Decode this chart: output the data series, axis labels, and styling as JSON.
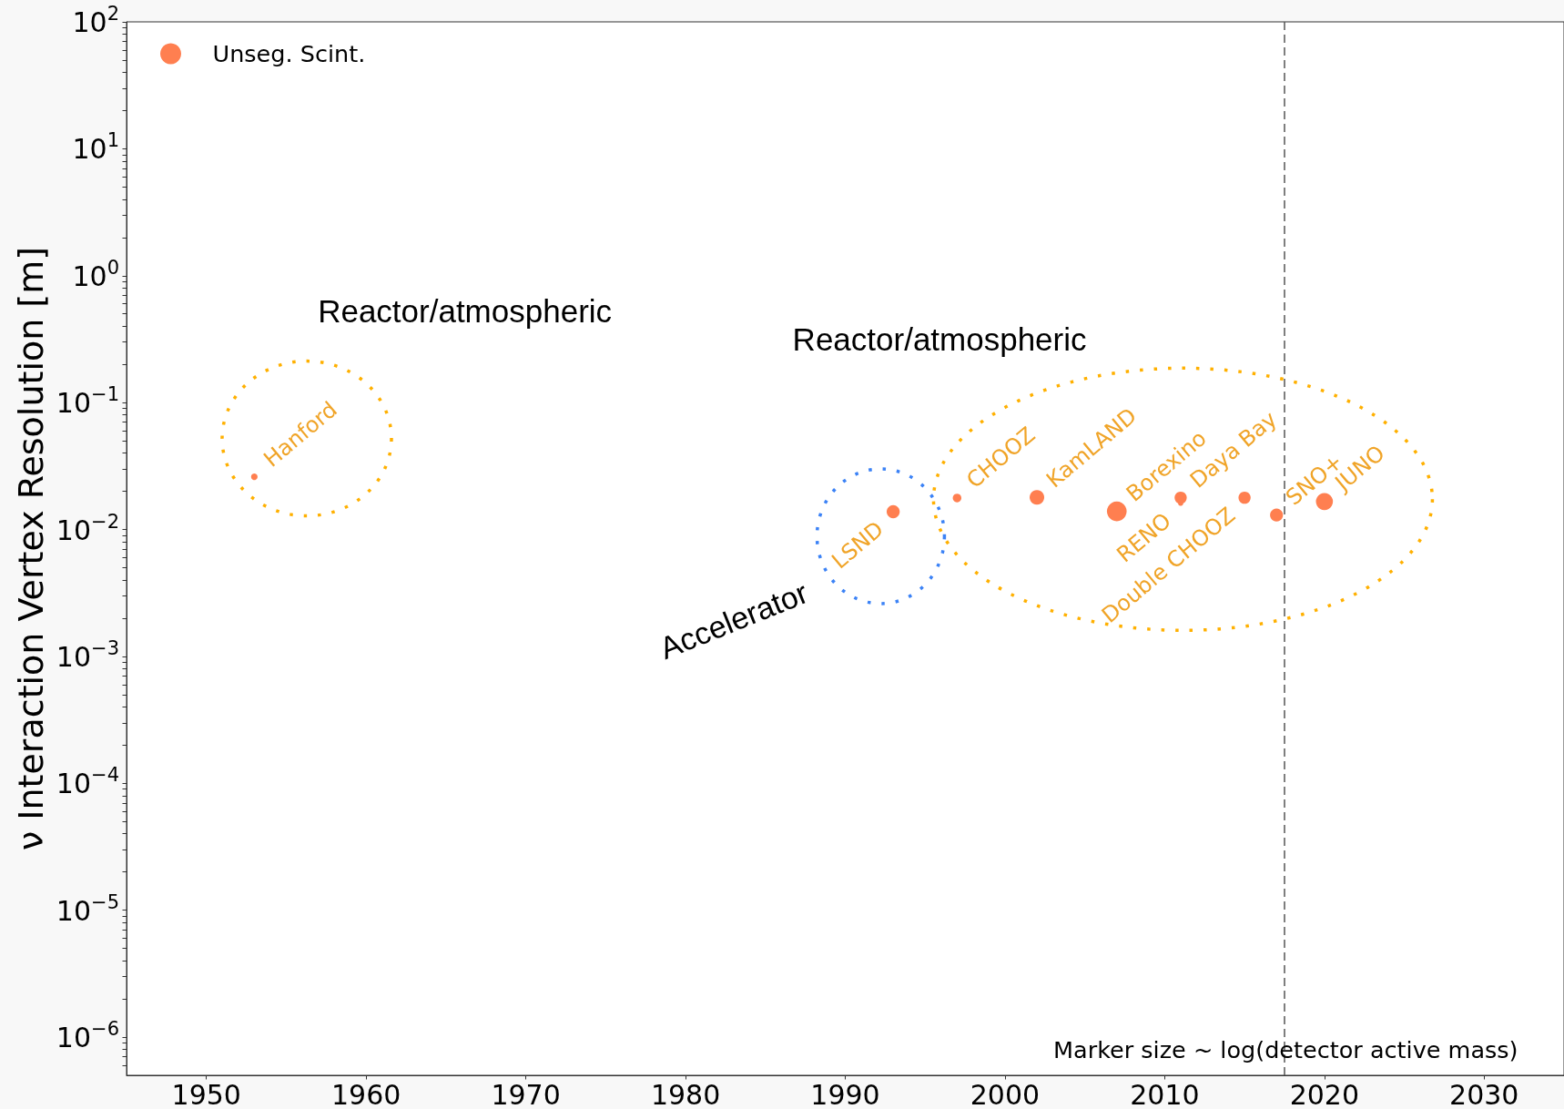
{
  "chart_data": {
    "type": "bubble",
    "ylabel": "ν Interaction Vertex Resolution [m]",
    "x": [
      1953,
      1993,
      1997,
      2002,
      2007,
      2011,
      2011,
      2015,
      2017,
      2020
    ],
    "series": [
      {
        "name": "Unseg. Scint.",
        "color": "#ff7f50",
        "values": [
          0.026,
          0.0138,
          0.0177,
          0.0179,
          0.0139,
          0.0161,
          0.0178,
          0.0178,
          0.013,
          0.0166
        ],
        "sizes": [
          0.11,
          0.44,
          0.19,
          0.55,
          1,
          0.07,
          0.38,
          0.38,
          0.43,
          0.74
        ]
      }
    ],
    "xlim": [
      1945,
      2035
    ],
    "xticks": [
      1950,
      1960,
      1970,
      1980,
      1990,
      2000,
      2010,
      2020,
      2030
    ],
    "ylim": [
      5e-07,
      100
    ],
    "yticks": [
      {
        "value": 6e-07,
        "label": null
      },
      {
        "value": 7e-07,
        "label": null
      },
      {
        "value": 8e-07,
        "label": null
      },
      {
        "value": 9e-07,
        "label": null
      },
      {
        "value": 1e-06,
        "label": "10$^{−6}$"
      },
      {
        "value": 2e-06,
        "label": null
      },
      {
        "value": 3e-06,
        "label": null
      },
      {
        "value": 4e-06,
        "label": null
      },
      {
        "value": 5e-06,
        "label": null
      },
      {
        "value": 6e-06,
        "label": null
      },
      {
        "value": 7e-06,
        "label": null
      },
      {
        "value": 8e-06,
        "label": null
      },
      {
        "value": 9e-06,
        "label": null
      },
      {
        "value": 1e-05,
        "label": "10$^{−5}$"
      },
      {
        "value": 2e-05,
        "label": null
      },
      {
        "value": 3e-05,
        "label": null
      },
      {
        "value": 4e-05,
        "label": null
      },
      {
        "value": 5e-05,
        "label": null
      },
      {
        "value": 6e-05,
        "label": null
      },
      {
        "value": 7e-05,
        "label": null
      },
      {
        "value": 8e-05,
        "label": null
      },
      {
        "value": 9e-05,
        "label": null
      },
      {
        "value": 0.0001,
        "label": "10$^{−4}$"
      },
      {
        "value": 0.0002,
        "label": null
      },
      {
        "value": 0.0003,
        "label": null
      },
      {
        "value": 0.0004,
        "label": null
      },
      {
        "value": 0.0005,
        "label": null
      },
      {
        "value": 0.0006,
        "label": null
      },
      {
        "value": 0.0007,
        "label": null
      },
      {
        "value": 0.0008,
        "label": null
      },
      {
        "value": 0.0009,
        "label": null
      },
      {
        "value": 0.001,
        "label": "10$^{−3}$"
      },
      {
        "value": 0.002,
        "label": null
      },
      {
        "value": 0.003,
        "label": null
      },
      {
        "value": 0.004,
        "label": null
      },
      {
        "value": 0.005,
        "label": null
      },
      {
        "value": 0.006,
        "label": null
      },
      {
        "value": 0.007,
        "label": null
      },
      {
        "value": 0.008,
        "label": null
      },
      {
        "value": 0.009,
        "label": null
      },
      {
        "value": 0.01,
        "label": "10$^{−2}$"
      },
      {
        "value": 0.02,
        "label": null
      },
      {
        "value": 0.03,
        "label": null
      },
      {
        "value": 0.04,
        "label": null
      },
      {
        "value": 0.05,
        "label": null
      },
      {
        "value": 0.06,
        "label": null
      },
      {
        "value": 0.07,
        "label": null
      },
      {
        "value": 0.08,
        "label": null
      },
      {
        "value": 0.09,
        "label": null
      },
      {
        "value": 0.1,
        "label": "10$^{−1}$"
      },
      {
        "value": 0.2,
        "label": null
      },
      {
        "value": 0.3,
        "label": null
      },
      {
        "value": 0.4,
        "label": null
      },
      {
        "value": 0.5,
        "label": null
      },
      {
        "value": 0.6,
        "label": null
      },
      {
        "value": 0.7,
        "label": null
      },
      {
        "value": 0.8,
        "label": null
      },
      {
        "value": 0.9,
        "label": null
      },
      {
        "value": 1,
        "label": "10$^{0}$"
      },
      {
        "value": 2,
        "label": null
      },
      {
        "value": 3,
        "label": null
      },
      {
        "value": 4,
        "label": null
      },
      {
        "value": 5,
        "label": null
      },
      {
        "value": 6,
        "label": null
      },
      {
        "value": 7,
        "label": null
      },
      {
        "value": 8,
        "label": null
      },
      {
        "value": 9,
        "label": null
      },
      {
        "value": 10,
        "label": "10$^{1}$"
      },
      {
        "value": 20,
        "label": null
      },
      {
        "value": 30,
        "label": null
      },
      {
        "value": 40,
        "label": null
      },
      {
        "value": 50,
        "label": null
      },
      {
        "value": 60,
        "label": null
      },
      {
        "value": 70,
        "label": null
      },
      {
        "value": 80,
        "label": null
      },
      {
        "value": 90,
        "label": null
      },
      {
        "value": 100,
        "label": "10$^{2}$"
      }
    ],
    "log": "y",
    "legend": "top left",
    "marker": "circle",
    "ref_lines": [
      {
        "axis": "x",
        "value": 2017.5,
        "color": "#555555",
        "line_style": "dashed"
      }
    ],
    "annotations": [
      "Reactor/atmospheric",
      "Reactor/atmospheric",
      "Accelerator",
      {
        "text": "Hanford",
        "x": 1953,
        "y": 0.026
      },
      {
        "text": "LSND",
        "x": 1993,
        "y": 0.0138
      },
      {
        "text": "CHOOZ",
        "x": 1997,
        "y": 0.0177
      },
      {
        "text": "KamLAND",
        "x": 2002,
        "y": 0.0179
      },
      {
        "text": "Borexino",
        "x": 2007,
        "y": 0.0139
      },
      {
        "text": "RENO",
        "x": 2011,
        "y": 0.0161
      },
      {
        "text": "Daya Bay",
        "x": 2011,
        "y": 0.0178
      },
      {
        "text": "Double CHOOZ",
        "x": 2015,
        "y": 0.0178
      },
      {
        "text": "SNO+",
        "x": 2017,
        "y": 0.013
      },
      {
        "text": "JUNO",
        "x": 2020,
        "y": 0.0166
      },
      "Marker size ~ log(detector active mass)"
    ]
  }
}
